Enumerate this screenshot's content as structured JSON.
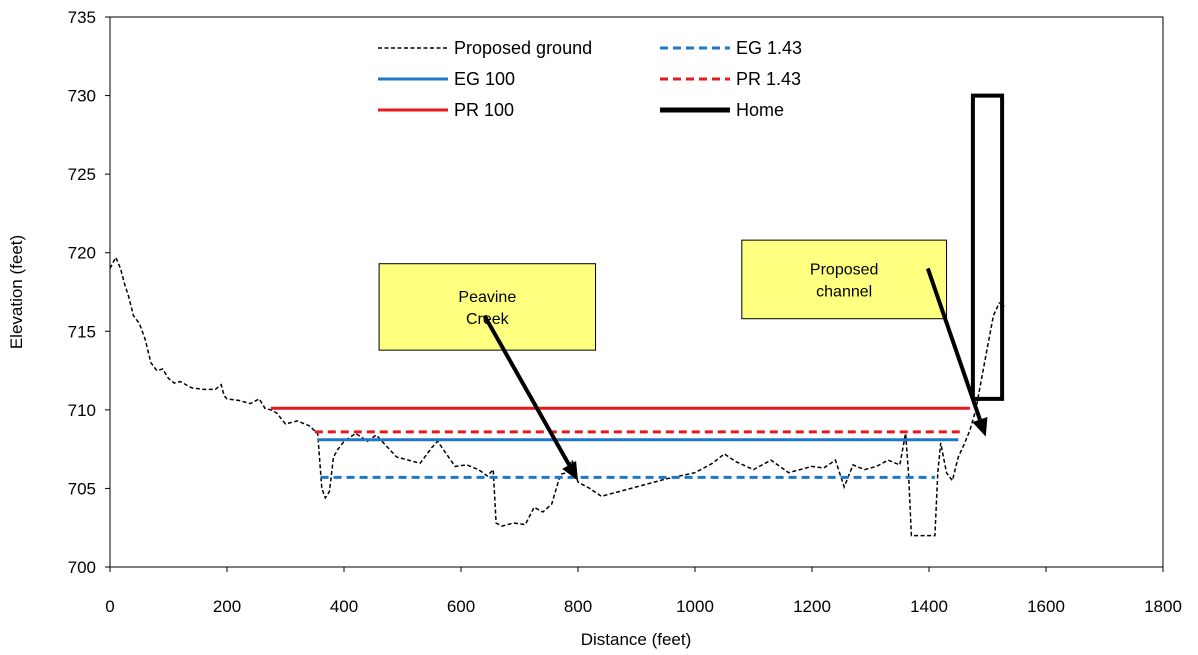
{
  "chart_data": {
    "type": "line",
    "xlabel": "Distance (feet)",
    "ylabel": "Elevation (feet)",
    "xlim": [
      0,
      1800
    ],
    "ylim": [
      700,
      735
    ],
    "xticks": [
      0,
      200,
      400,
      600,
      800,
      1000,
      1200,
      1400,
      1600,
      1800
    ],
    "yticks": [
      700,
      705,
      710,
      715,
      720,
      725,
      730,
      735
    ],
    "grid": false,
    "legend_position": "top",
    "series": [
      {
        "name": "Proposed ground",
        "color": "#000000",
        "style": "dashed",
        "x": [
          0,
          10,
          18,
          25,
          32,
          40,
          50,
          60,
          70,
          80,
          90,
          100,
          110,
          120,
          140,
          160,
          180,
          190,
          195,
          200,
          220,
          240,
          255,
          265,
          275,
          285,
          300,
          320,
          340,
          355,
          362,
          368,
          375,
          382,
          390,
          400,
          420,
          440,
          455,
          470,
          490,
          510,
          530,
          550,
          560,
          575,
          590,
          610,
          630,
          645,
          655,
          660,
          670,
          690,
          710,
          725,
          740,
          755,
          770,
          780,
          790,
          800,
          820,
          840,
          900,
          950,
          1000,
          1030,
          1050,
          1070,
          1100,
          1130,
          1160,
          1200,
          1220,
          1240,
          1255,
          1270,
          1290,
          1310,
          1330,
          1350,
          1360,
          1365,
          1370,
          1380,
          1400,
          1410,
          1415,
          1420,
          1430,
          1440,
          1450,
          1460,
          1470,
          1480,
          1490,
          1500,
          1510,
          1520,
          1530
        ],
        "y": [
          719.0,
          719.7,
          719.0,
          718.0,
          717.2,
          716.0,
          715.5,
          714.5,
          713.0,
          712.5,
          712.6,
          712.0,
          711.7,
          711.8,
          711.4,
          711.3,
          711.3,
          711.6,
          710.9,
          710.7,
          710.6,
          710.4,
          710.7,
          710.1,
          710.0,
          709.8,
          709.1,
          709.3,
          709.0,
          708.5,
          705.0,
          704.4,
          704.8,
          707.0,
          707.5,
          708.0,
          708.5,
          708.0,
          708.4,
          707.8,
          707.0,
          706.8,
          706.6,
          707.6,
          708.0,
          707.2,
          706.4,
          706.5,
          706.2,
          705.8,
          706.2,
          702.8,
          702.6,
          702.8,
          702.7,
          703.8,
          703.5,
          704.0,
          705.9,
          706.0,
          706.8,
          705.4,
          705.0,
          704.5,
          705.1,
          705.6,
          706.0,
          706.6,
          707.2,
          706.7,
          706.2,
          706.8,
          706.0,
          706.4,
          706.3,
          706.8,
          705.1,
          706.5,
          706.2,
          706.4,
          706.8,
          706.5,
          708.5,
          706.0,
          702.0,
          702.0,
          702.0,
          702.0,
          706.0,
          707.9,
          706.0,
          705.5,
          707.0,
          707.8,
          708.7,
          710.0,
          712.0,
          714.0,
          716.0,
          716.8,
          716.6
        ]
      },
      {
        "name": "EG 1.43",
        "color": "#1f77c9",
        "style": "dashed",
        "x": [
          360,
          1410
        ],
        "y": [
          705.7,
          705.7
        ]
      },
      {
        "name": "EG 100",
        "color": "#1f77c9",
        "style": "solid",
        "x": [
          355,
          1450
        ],
        "y": [
          708.1,
          708.1
        ]
      },
      {
        "name": "PR 1.43",
        "color": "#e41a1c",
        "style": "dashed",
        "x": [
          350,
          1460
        ],
        "y": [
          708.6,
          708.6
        ]
      },
      {
        "name": "PR 100",
        "color": "#e41a1c",
        "style": "solid",
        "x": [
          275,
          1470
        ],
        "y": [
          710.1,
          710.1
        ]
      },
      {
        "name": "Home",
        "color": "#000000",
        "style": "thick",
        "x": [
          1475,
          1475,
          1525,
          1525,
          1475
        ],
        "y": [
          710.7,
          730.0,
          730.0,
          710.7,
          710.7
        ]
      }
    ],
    "legend": [
      {
        "series": "Proposed ground",
        "col": 0,
        "row": 0
      },
      {
        "series": "EG 1.43",
        "col": 1,
        "row": 0
      },
      {
        "series": "EG 100",
        "col": 0,
        "row": 1
      },
      {
        "series": "PR 1.43",
        "col": 1,
        "row": 1
      },
      {
        "series": "PR 100",
        "col": 0,
        "row": 2
      },
      {
        "series": "Home",
        "col": 1,
        "row": 2
      }
    ],
    "annotations": [
      {
        "lines": [
          "Peavine",
          "Creek"
        ],
        "box_x": [
          460,
          830
        ],
        "box_y": [
          713.8,
          719.3
        ],
        "arrow_from": [
          640,
          716.0
        ],
        "arrow_to": [
          800,
          705.5
        ],
        "fill": "#ffff80"
      },
      {
        "lines": [
          "Proposed",
          "channel"
        ],
        "box_x": [
          1080,
          1430
        ],
        "box_y": [
          715.8,
          720.8
        ],
        "arrow_from": [
          1398,
          719.0
        ],
        "arrow_to": [
          1497,
          708.3
        ],
        "fill": "#ffff80"
      }
    ]
  }
}
